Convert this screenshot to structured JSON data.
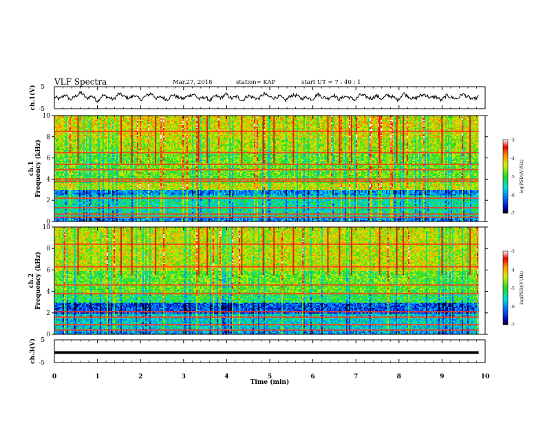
{
  "header": {
    "title": "VLF Spectra",
    "date": "Mar.27, 2018",
    "station": "station= KAP",
    "start": "start  UT  =   7 : 40 : 1"
  },
  "chart_data": [
    {
      "type": "line",
      "name": "ch1-waveform",
      "ylabel": "ch.1(V)",
      "ylim": [
        -5,
        5
      ],
      "yticks": [
        "5",
        "-5"
      ],
      "xlim": [
        0,
        10
      ],
      "values": [
        0.3,
        -0.6,
        1.4,
        -1.0,
        0.8,
        2.3,
        -0.4,
        0.9,
        -1.6,
        1.1,
        0.2,
        -0.8,
        1.9,
        0.5,
        -0.2,
        1.2,
        -1.1,
        0.7,
        2.0,
        -0.3,
        0.4,
        -0.9,
        1.3,
        0.1,
        -0.5,
        0.9,
        1.6,
        -0.7,
        0.3,
        -1.2,
        0.8,
        0.0,
        1.5,
        -0.4,
        0.6,
        -1.4,
        1.0,
        0.2,
        -0.6,
        1.8,
        0.4,
        -0.1,
        0.7,
        -1.3,
        0.9,
        1.1,
        -0.5,
        0.3,
        -0.8,
        1.6,
        0.2,
        -0.3,
        1.3,
        -0.9,
        0.6,
        0.1,
        -1.1,
        1.4,
        0.5,
        -0.4,
        0.9,
        -0.7,
        1.2,
        0.3,
        -1.0,
        2.1,
        0.4,
        -0.6,
        0.8,
        1.5,
        -0.2,
        0.6,
        -1.3,
        1.0,
        0.1,
        -0.5,
        1.7,
        0.3,
        -0.8,
        0.5
      ],
      "color": "#000000"
    },
    {
      "type": "heatmap",
      "name": "ch1-spectrogram",
      "ylabel": "ch.1\nFrequency (kHz)",
      "ylim": [
        0,
        10
      ],
      "yticks": [
        "0",
        "2",
        "4",
        "6",
        "8",
        "10"
      ],
      "xlim": [
        0,
        10
      ],
      "colorbar": {
        "label": "log(PSD)(V²/Hz)",
        "range": [
          -7,
          -3
        ],
        "ticks": [
          "-3",
          "-4",
          "-5",
          "-6",
          "-7"
        ]
      },
      "bands": [
        {
          "lo": 8.0,
          "hi": 10.0,
          "level": -4.3
        },
        {
          "lo": 6.5,
          "hi": 8.0,
          "level": -4.5
        },
        {
          "lo": 3.7,
          "hi": 6.5,
          "level": -4.8
        },
        {
          "lo": 3.0,
          "hi": 3.7,
          "level": -4.4
        },
        {
          "lo": 2.5,
          "hi": 3.0,
          "level": -6.0
        },
        {
          "lo": 0.4,
          "hi": 2.5,
          "level": -5.4
        },
        {
          "lo": 0.0,
          "hi": 0.4,
          "level": -6.0
        }
      ],
      "lines_khz": [
        0.4,
        0.7,
        1.3,
        2.2,
        3.8,
        4.0,
        4.9,
        5.4,
        6.5,
        8.5
      ],
      "spikes_min": [
        0.55,
        1.55,
        1.8,
        2.35,
        3.35,
        3.55,
        4.35,
        4.85,
        5.1,
        5.55,
        6.35,
        6.62,
        6.9,
        7.55,
        7.95,
        8.1,
        9.0,
        9.65
      ]
    },
    {
      "type": "heatmap",
      "name": "ch2-spectrogram",
      "ylabel": "ch.2\nFrequency (kHz)",
      "ylim": [
        0,
        10
      ],
      "yticks": [
        "0",
        "2",
        "4",
        "6",
        "8",
        "10"
      ],
      "xlim": [
        0,
        10
      ],
      "colorbar": {
        "label": "log(PSD)(V²/Hz)",
        "range": [
          -7,
          -3
        ],
        "ticks": [
          "-3",
          "-4",
          "-5",
          "-6",
          "-7"
        ]
      },
      "bands": [
        {
          "lo": 6.0,
          "hi": 10.0,
          "level": -4.4
        },
        {
          "lo": 3.8,
          "hi": 6.0,
          "level": -4.8
        },
        {
          "lo": 3.0,
          "hi": 3.8,
          "level": -5.1
        },
        {
          "lo": 2.0,
          "hi": 3.0,
          "level": -6.3
        },
        {
          "lo": 0.4,
          "hi": 2.0,
          "level": -5.6
        },
        {
          "lo": 0.0,
          "hi": 0.4,
          "level": -5.9
        }
      ],
      "lines_khz": [
        0.4,
        0.9,
        1.6,
        2.1,
        3.8,
        4.6,
        6.3,
        8.4
      ],
      "spikes_min": [
        0.55,
        1.55,
        1.8,
        2.35,
        3.35,
        3.55,
        4.35,
        4.85,
        5.1,
        5.55,
        6.35,
        6.62,
        6.9,
        7.55,
        7.95,
        8.1,
        9.0,
        9.65
      ]
    },
    {
      "type": "line",
      "name": "ch3-waveform",
      "ylabel": "ch.3(V)",
      "ylim": [
        -5,
        5
      ],
      "yticks": [
        "5",
        "-5"
      ],
      "xlim": [
        0,
        10
      ],
      "level": 0,
      "color": "#000000"
    }
  ],
  "xaxis": {
    "label": "Time (min)",
    "ticks": [
      "0",
      "1",
      "2",
      "3",
      "4",
      "5",
      "6",
      "7",
      "8",
      "9",
      "10"
    ]
  }
}
